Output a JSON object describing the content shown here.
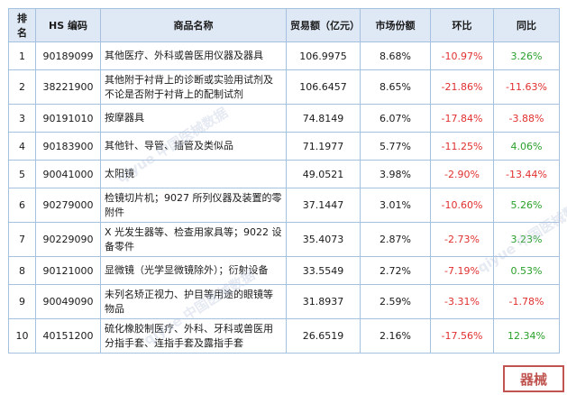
{
  "headers": [
    "排名",
    "HS 编码",
    "商品名称",
    "贸易额（亿元）",
    "市场份额",
    "环比",
    "同比"
  ],
  "rows": [
    {
      "rank": "1",
      "code": "90189099",
      "name": "其他医疗、外科或兽医用仪器及器具",
      "trade": "106.9975",
      "share": "8.68%",
      "mom": "-10.97%",
      "yoy": "3.26%"
    },
    {
      "rank": "2",
      "code": "38221900",
      "name": "其他附于衬背上的诊断或实验用试剂及不论是否附于衬背上的配制试剂",
      "trade": "106.6457",
      "share": "8.65%",
      "mom": "-21.86%",
      "yoy": "-11.63%"
    },
    {
      "rank": "3",
      "code": "90191010",
      "name": "按摩器具",
      "trade": "74.8149",
      "share": "6.07%",
      "mom": "-17.84%",
      "yoy": "-3.88%"
    },
    {
      "rank": "4",
      "code": "90183900",
      "name": "其他针、导管、插管及类似品",
      "trade": "71.1977",
      "share": "5.77%",
      "mom": "-11.25%",
      "yoy": "4.06%"
    },
    {
      "rank": "5",
      "code": "90041000",
      "name": "太阳镜",
      "trade": "49.0521",
      "share": "3.98%",
      "mom": "-2.90%",
      "yoy": "-13.44%"
    },
    {
      "rank": "6",
      "code": "90279000",
      "name": "检镜切片机；9027 所列仪器及装置的零附件",
      "trade": "37.1447",
      "share": "3.01%",
      "mom": "-10.60%",
      "yoy": "5.26%"
    },
    {
      "rank": "7",
      "code": "90229090",
      "name": "X 光发生器等、检查用家具等；9022 设备零件",
      "trade": "35.4073",
      "share": "2.87%",
      "mom": "-2.73%",
      "yoy": "3.23%"
    },
    {
      "rank": "8",
      "code": "90121000",
      "name": "显微镜（光学显微镜除外）；衍射设备",
      "trade": "33.5549",
      "share": "2.72%",
      "mom": "-7.19%",
      "yoy": "0.53%"
    },
    {
      "rank": "9",
      "code": "90049090",
      "name": "未列名矫正视力、护目等用途的眼镜等物品",
      "trade": "31.8937",
      "share": "2.59%",
      "mom": "-3.31%",
      "yoy": "-1.78%"
    },
    {
      "rank": "10",
      "code": "40151200",
      "name": "硫化橡胶制医疗、外科、牙科或兽医用分指手套、连指手套及露指手套",
      "trade": "26.6519",
      "share": "2.16%",
      "mom": "-17.56%",
      "yoy": "12.34%"
    }
  ],
  "colors": {
    "negative": "#e0302f",
    "positive": "#2aa02a",
    "header_bg": "#dfe9f6",
    "border": "#a6c1e0"
  },
  "watermark": "qiyue 中国医械数据",
  "seal_text": "器械"
}
